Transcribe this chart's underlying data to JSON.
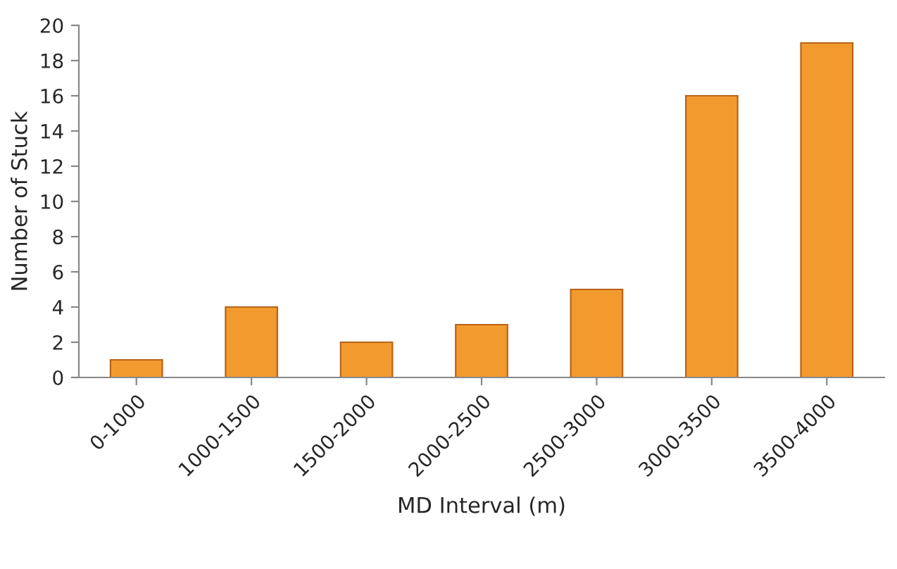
{
  "chart_data": {
    "type": "bar",
    "xlabel": "MD Interval (m)",
    "ylabel": "Number of Stuck",
    "categories": [
      "0-1000",
      "1000-1500",
      "1500-2000",
      "2000-2500",
      "2500-3000",
      "3000-3500",
      "3500-4000"
    ],
    "values": [
      1,
      4,
      2,
      3,
      5,
      16,
      19
    ],
    "color": "#f39a2e",
    "ylim": [
      0,
      20
    ],
    "yticks": [
      0,
      2,
      4,
      6,
      8,
      10,
      12,
      14,
      16,
      18,
      20
    ],
    "grid": false,
    "legend": false
  }
}
